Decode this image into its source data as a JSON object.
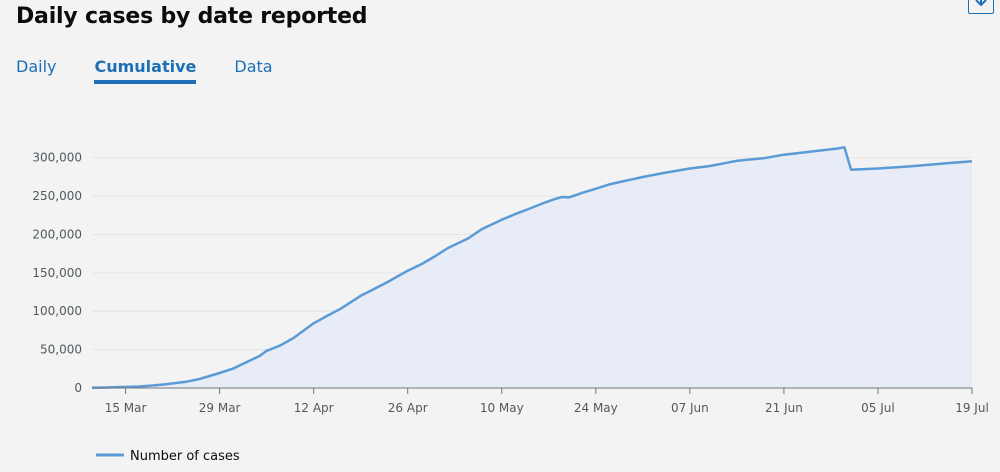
{
  "header": {
    "title": "Daily cases by date reported"
  },
  "download": {
    "icon": "download-icon"
  },
  "tabs": [
    {
      "label": "Daily",
      "active": false
    },
    {
      "label": "Cumulative",
      "active": true
    },
    {
      "label": "Data",
      "active": false
    }
  ],
  "colors": {
    "line": "#5b9bd5",
    "fill": "#e8ecf7",
    "link": "#1d70b8"
  },
  "chart_data": {
    "type": "area",
    "title": "",
    "xlabel": "",
    "ylabel": "",
    "x_start": "2020-03-10",
    "x_end": "2020-07-19",
    "ylim": [
      0,
      310000
    ],
    "yticks": [
      0,
      50000,
      100000,
      150000,
      200000,
      250000,
      300000
    ],
    "ytick_labels": [
      "0",
      "50,000",
      "100,000",
      "150,000",
      "200,000",
      "250,000",
      "300,000"
    ],
    "xticks": [
      "2020-03-15",
      "2020-03-29",
      "2020-04-12",
      "2020-04-26",
      "2020-05-10",
      "2020-05-24",
      "2020-06-07",
      "2020-06-21",
      "2020-07-05",
      "2020-07-19"
    ],
    "xtick_labels": [
      "15 Mar",
      "29 Mar",
      "12 Apr",
      "26 Apr",
      "10 May",
      "24 May",
      "07 Jun",
      "21 Jun",
      "05 Jul",
      "19 Jul"
    ],
    "grid": true,
    "legend_position": "bottom-left",
    "series": [
      {
        "name": "Number of cases",
        "points": [
          [
            "2020-03-10",
            400
          ],
          [
            "2020-03-12",
            600
          ],
          [
            "2020-03-15",
            1400
          ],
          [
            "2020-03-17",
            2000
          ],
          [
            "2020-03-19",
            3300
          ],
          [
            "2020-03-21",
            5000
          ],
          [
            "2020-03-24",
            8100
          ],
          [
            "2020-03-26",
            11700
          ],
          [
            "2020-03-29",
            19600
          ],
          [
            "2020-03-31",
            25300
          ],
          [
            "2020-04-02",
            33700
          ],
          [
            "2020-04-04",
            41900
          ],
          [
            "2020-04-05",
            48400
          ],
          [
            "2020-04-07",
            55200
          ],
          [
            "2020-04-09",
            65100
          ],
          [
            "2020-04-12",
            84300
          ],
          [
            "2020-04-14",
            93900
          ],
          [
            "2020-04-16",
            103100
          ],
          [
            "2020-04-19",
            120100
          ],
          [
            "2020-04-21",
            129000
          ],
          [
            "2020-04-23",
            138100
          ],
          [
            "2020-04-26",
            152800
          ],
          [
            "2020-04-28",
            161100
          ],
          [
            "2020-04-30",
            171300
          ],
          [
            "2020-05-02",
            182300
          ],
          [
            "2020-05-05",
            194900
          ],
          [
            "2020-05-07",
            206700
          ],
          [
            "2020-05-10",
            219200
          ],
          [
            "2020-05-12",
            226500
          ],
          [
            "2020-05-14",
            233100
          ],
          [
            "2020-05-16",
            240200
          ],
          [
            "2020-05-18",
            246400
          ],
          [
            "2020-05-19",
            248800
          ],
          [
            "2020-05-20",
            248300
          ],
          [
            "2020-05-22",
            254200
          ],
          [
            "2020-05-24",
            259600
          ],
          [
            "2020-05-26",
            265200
          ],
          [
            "2020-05-28",
            269100
          ],
          [
            "2020-05-31",
            274800
          ],
          [
            "2020-06-03",
            279900
          ],
          [
            "2020-06-07",
            285900
          ],
          [
            "2020-06-10",
            289100
          ],
          [
            "2020-06-14",
            295900
          ],
          [
            "2020-06-18",
            299300
          ],
          [
            "2020-06-21",
            303900
          ],
          [
            "2020-06-25",
            307900
          ],
          [
            "2020-06-29",
            311900
          ],
          [
            "2020-06-30",
            313500
          ],
          [
            "2020-07-01",
            284300
          ],
          [
            "2020-07-05",
            285900
          ],
          [
            "2020-07-10",
            288900
          ],
          [
            "2020-07-15",
            292500
          ],
          [
            "2020-07-19",
            295400
          ]
        ]
      }
    ]
  }
}
